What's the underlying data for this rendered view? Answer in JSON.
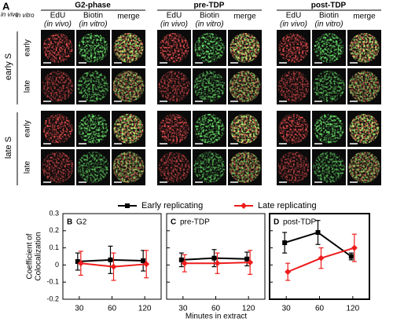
{
  "panel_a": {
    "label": "A",
    "corner": {
      "top": "in vivo",
      "bottom": "in vitro"
    },
    "groups": [
      {
        "title": "G2-phase",
        "columns": [
          {
            "line1": "EdU",
            "line2": "(in vivo)"
          },
          {
            "line1": "Biotin",
            "line2": "(in vitro)"
          },
          {
            "line1": "merge"
          }
        ]
      },
      {
        "title": "pre-TDP",
        "columns": [
          {
            "line1": "EdU",
            "line2": "(in vivo)"
          },
          {
            "line1": "Biotin",
            "line2": "(in vitro)"
          },
          {
            "line1": "merge"
          }
        ]
      },
      {
        "title": "post-TDP",
        "columns": [
          {
            "line1": "EdU",
            "line2": "(in vivo)"
          },
          {
            "line1": "Biotin",
            "line2": "(in vitro)"
          },
          {
            "line1": "merge"
          }
        ]
      }
    ],
    "row_groups": [
      {
        "label": "early S",
        "rows": [
          "early",
          "late"
        ]
      },
      {
        "label": "late S",
        "rows": [
          "early",
          "late"
        ]
      }
    ]
  },
  "legend": [
    {
      "name": "Early replicating",
      "color": "#000000"
    },
    {
      "name": "Late replicating",
      "color": "#ee1c1c"
    }
  ],
  "xlabel": "Minutes in extract",
  "chart_data": [
    {
      "type": "line",
      "label": "B",
      "title": "G2",
      "categories": [
        "30",
        "60",
        "120"
      ],
      "ylabel": [
        "Coefficient of",
        "Colocalization"
      ],
      "ylim": [
        -0.2,
        0.3
      ],
      "yticks": [
        0.3,
        0.2,
        0.1,
        0,
        -0.1,
        -0.2
      ],
      "series": [
        {
          "color": "#000000",
          "values": [
            0.02,
            0.03,
            0.025
          ],
          "errors": [
            0.05,
            0.08,
            0.06
          ]
        },
        {
          "color": "#ee1c1c",
          "values": [
            0.01,
            -0.01,
            0.005
          ],
          "errors": [
            0.07,
            0.08,
            0.08
          ]
        }
      ]
    },
    {
      "type": "line",
      "label": "C",
      "title": "pre-TDP",
      "categories": [
        "30",
        "60",
        "120"
      ],
      "series": [
        {
          "color": "#000000",
          "values": [
            0.03,
            0.04,
            0.035
          ],
          "errors": [
            0.04,
            0.05,
            0.04
          ]
        },
        {
          "color": "#ee1c1c",
          "values": [
            0.01,
            0.01,
            0.015
          ],
          "errors": [
            0.05,
            0.06,
            0.07
          ]
        }
      ]
    },
    {
      "type": "line",
      "label": "D",
      "title": "post-TDP",
      "categories": [
        "30",
        "60",
        "120"
      ],
      "series": [
        {
          "color": "#000000",
          "values": [
            0.13,
            0.19,
            0.05
          ],
          "errors": [
            0.06,
            0.07,
            0.02
          ]
        },
        {
          "color": "#ee1c1c",
          "values": [
            -0.04,
            0.04,
            0.1
          ],
          "errors": [
            0.05,
            0.06,
            0.08
          ]
        }
      ]
    }
  ]
}
